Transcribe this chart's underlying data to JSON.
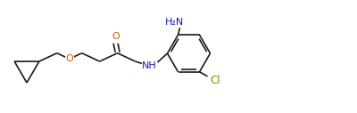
{
  "bg_color": "#ffffff",
  "line_color": "#1a1a1a",
  "atom_colors": {
    "O": "#e05000",
    "NH": "#1a1aaa",
    "H2N": "#1a1aaa",
    "Cl": "#8b8b00"
  },
  "figsize": [
    4.0,
    1.27
  ],
  "dpi": 100,
  "lw": 1.2
}
